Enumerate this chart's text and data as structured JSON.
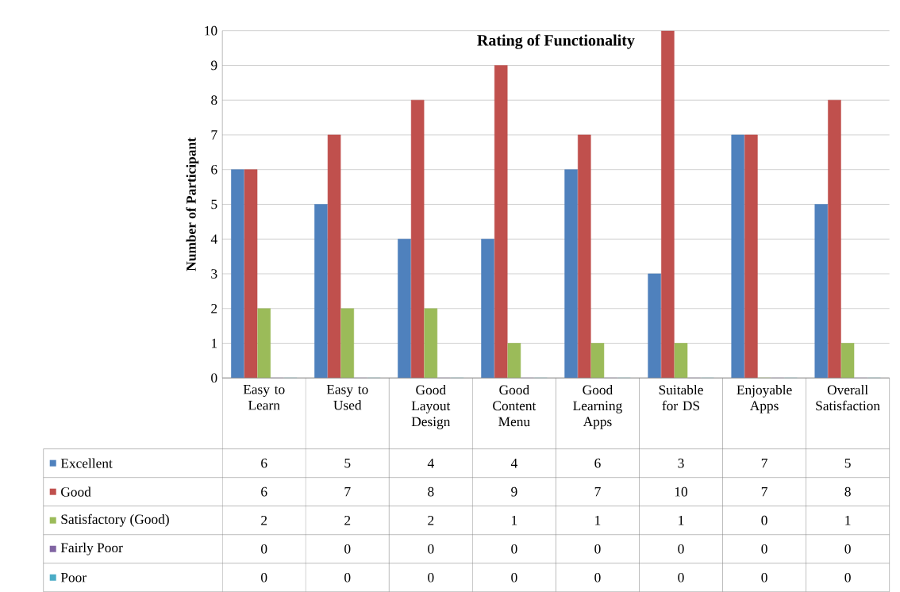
{
  "chart_data": {
    "type": "bar",
    "title": "Rating of Functionality",
    "ylabel": "Number of Participant",
    "categories": [
      "Easy to Learn",
      "Easy to Used",
      "Good Layout Design",
      "Good Content Menu",
      "Good Learning Apps",
      "Suitable for DS",
      "Enjoyable Apps",
      "Overall Satisfaction"
    ],
    "series": [
      {
        "name": "Excellent",
        "color": "#4f81bd",
        "values": [
          6,
          5,
          4,
          4,
          6,
          3,
          7,
          5
        ]
      },
      {
        "name": "Good",
        "color": "#c0504d",
        "values": [
          6,
          7,
          8,
          9,
          7,
          10,
          7,
          8
        ]
      },
      {
        "name": "Satisfactory (Good)",
        "color": "#9bbb59",
        "values": [
          2,
          2,
          2,
          1,
          1,
          1,
          0,
          1
        ]
      },
      {
        "name": "Fairly Poor",
        "color": "#8064a2",
        "values": [
          0,
          0,
          0,
          0,
          0,
          0,
          0,
          0
        ]
      },
      {
        "name": "Poor",
        "color": "#4bacc6",
        "values": [
          0,
          0,
          0,
          0,
          0,
          0,
          0,
          0
        ]
      }
    ],
    "ylim": [
      0,
      10
    ],
    "yticks": [
      0,
      1,
      2,
      3,
      4,
      5,
      6,
      7,
      8,
      9,
      10
    ],
    "grid": "y",
    "legend": "bottom left",
    "data_labels": true
  }
}
